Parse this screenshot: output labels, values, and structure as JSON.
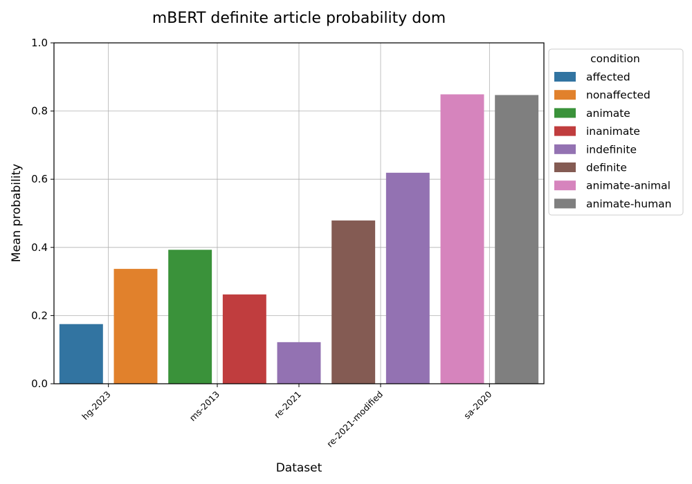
{
  "chart_data": {
    "type": "bar",
    "title": "mBERT definite article probability dom",
    "xlabel": "Dataset",
    "ylabel": "Mean probability",
    "ylim": [
      0,
      1.0
    ],
    "yticks": [
      "0.0",
      "0.2",
      "0.4",
      "0.6",
      "0.8",
      "1.0"
    ],
    "grid": true,
    "legend": {
      "title": "condition",
      "placement": "outside-right-top",
      "entries": [
        {
          "name": "affected",
          "color": "#3274a1"
        },
        {
          "name": "nonaffected",
          "color": "#e1812c"
        },
        {
          "name": "animate",
          "color": "#3a923a"
        },
        {
          "name": "inanimate",
          "color": "#c03d3e"
        },
        {
          "name": "indefinite",
          "color": "#9372b2"
        },
        {
          "name": "definite",
          "color": "#845b53"
        },
        {
          "name": "animate-animal",
          "color": "#d684bd"
        },
        {
          "name": "animate-human",
          "color": "#7f7f7f"
        }
      ]
    },
    "x_tick_labels": [
      "hg-2023",
      "ms-2013",
      "re-2021",
      "re-2021-modified",
      "sa-2020"
    ],
    "bars": [
      {
        "dataset": "hg-2023",
        "condition": "affected",
        "value": 0.175
      },
      {
        "dataset": "hg-2023",
        "condition": "nonaffected",
        "value": 0.337
      },
      {
        "dataset": "ms-2013",
        "condition": "animate",
        "value": 0.393
      },
      {
        "dataset": "ms-2013",
        "condition": "inanimate",
        "value": 0.262
      },
      {
        "dataset": "re-2021",
        "condition": "indefinite",
        "value": 0.122
      },
      {
        "dataset": "re-2021-modified",
        "condition": "definite",
        "value": 0.479
      },
      {
        "dataset": "re-2021-modified",
        "condition": "indefinite",
        "value": 0.619
      },
      {
        "dataset": "sa-2020",
        "condition": "animate-animal",
        "value": 0.849
      },
      {
        "dataset": "sa-2020",
        "condition": "animate-human",
        "value": 0.847
      }
    ]
  }
}
